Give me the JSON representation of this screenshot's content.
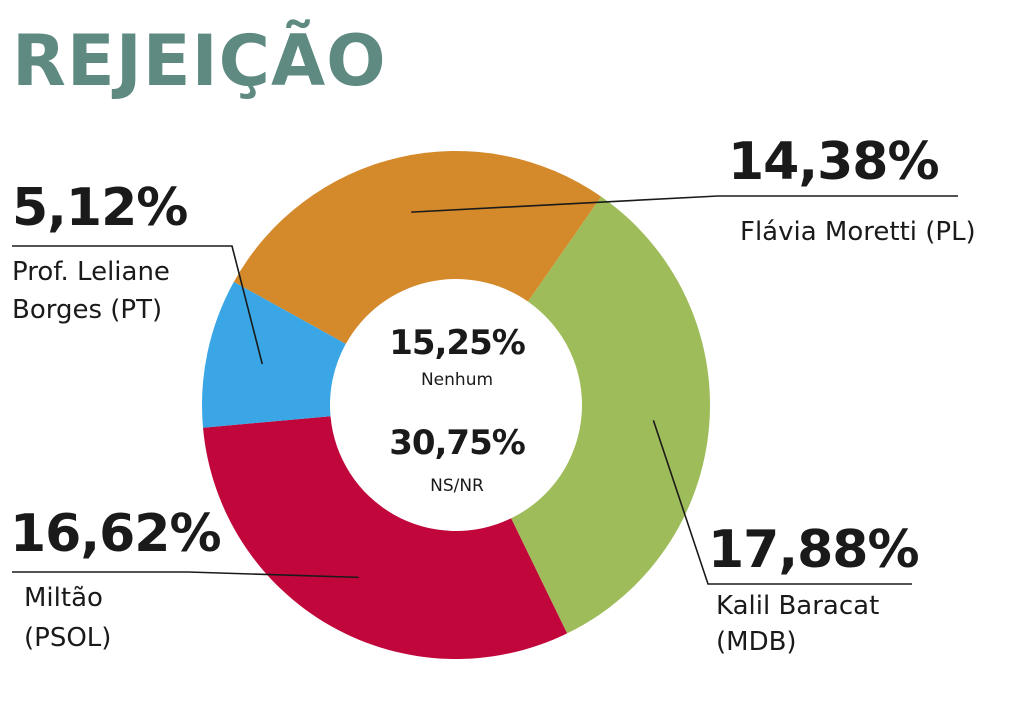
{
  "chart_data": {
    "type": "donut",
    "title": "REJEIÇÃO",
    "slices": [
      {
        "value_label": "14,38%",
        "value": 14.38,
        "name": "Flávia Moretti (PL)",
        "color": "#d4892a"
      },
      {
        "value_label": "17,88%",
        "value": 17.88,
        "name_lines": [
          "Kalil Baracat",
          "(MDB)"
        ],
        "color": "#9fbc5a"
      },
      {
        "value_label": "16,62%",
        "value": 16.62,
        "name_lines": [
          "Miltão",
          "(PSOL)"
        ],
        "color": "#c0063a"
      },
      {
        "value_label": "5,12%",
        "value": 5.12,
        "name_lines": [
          "Prof. Leliane",
          "Borges (PT)"
        ],
        "color": "#3aa6e5"
      }
    ],
    "center": [
      {
        "value_label": "15,25%",
        "label": "Nenhum"
      },
      {
        "value_label": "30,75%",
        "label": "NS/NR"
      }
    ]
  }
}
